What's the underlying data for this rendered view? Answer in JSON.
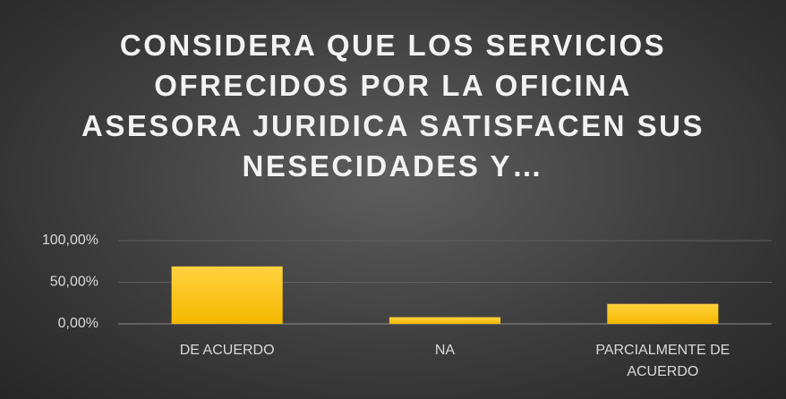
{
  "chart_data": {
    "type": "bar",
    "title": "CONSIDERA QUE LOS SERVICIOS OFRECIDOS POR LA OFICINA ASESORA JURIDICA SATISFACEN SUS NESECIDADES Y…",
    "categories": [
      "DE ACUERDO",
      "NA",
      "PARCIALMENTE DE ACUERDO"
    ],
    "values": [
      69,
      8,
      24
    ],
    "color": "#ffc000",
    "ylim": [
      0,
      100
    ],
    "yticks": [
      {
        "value": 0,
        "label": "0,00%"
      },
      {
        "value": 50,
        "label": "50,00%"
      },
      {
        "value": 100,
        "label": "100,00%"
      }
    ],
    "grid": true
  }
}
